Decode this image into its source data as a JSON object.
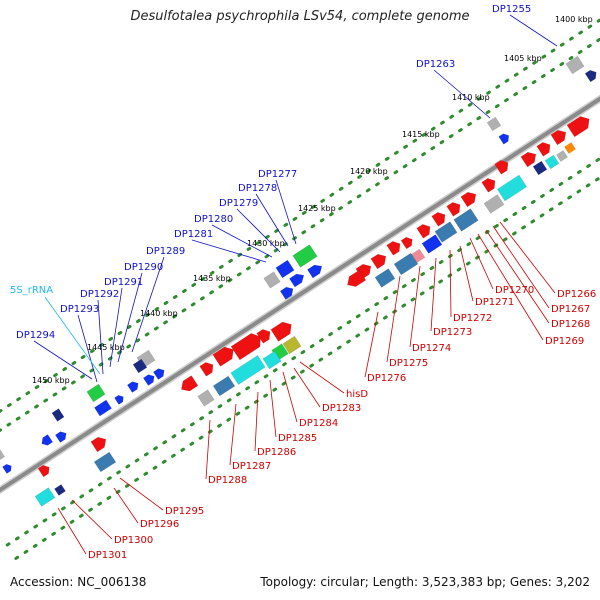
{
  "title": "Desulfotalea psychrophila LSv54, complete genome",
  "footer": {
    "accession": "Accession: NC_006138",
    "topology": "Topology: circular; Length: 3,523,383 bp; Genes: 3,202"
  },
  "colors": {
    "backbone": "#8a8a8a",
    "ruler_dots": "#2e8b2e",
    "forward_label": "#1010c8",
    "reverse_label": "#cc0000",
    "rna_label": "#20b8e8",
    "red_gene": "#ee1111",
    "blue_gene": "#1133ee",
    "cyan_gene": "#22dddd",
    "steel_gene": "#3a7bb0",
    "grey_gene": "#b0b0b0",
    "green_gene": "#22cc44",
    "navy_gene": "#1a2a80"
  },
  "scale_labels": [
    "1400 kbp",
    "1405 kbp",
    "1410 kbp",
    "1415 kbp",
    "1420 kbp",
    "1425 kbp",
    "1430 kbp",
    "1435 kbp",
    "1440 kbp",
    "1445 kbp",
    "1450 kbp"
  ],
  "forward_labels": [
    "DP1255",
    "DP1263",
    "DP1277",
    "DP1278",
    "DP1279",
    "DP1280",
    "DP1281",
    "DP1289",
    "DP1290",
    "DP1291",
    "DP1292",
    "DP1293",
    "DP1294"
  ],
  "rna_labels": [
    "5S_rRNA"
  ],
  "reverse_labels": [
    "DP1266",
    "DP1267",
    "DP1268",
    "DP1269",
    "DP1270",
    "DP1271",
    "DP1272",
    "DP1273",
    "DP1274",
    "DP1275",
    "DP1276",
    "hisD",
    "DP1283",
    "DP1284",
    "DP1285",
    "DP1286",
    "DP1287",
    "DP1288",
    "DP1295",
    "DP1296",
    "DP1300",
    "DP1301"
  ]
}
